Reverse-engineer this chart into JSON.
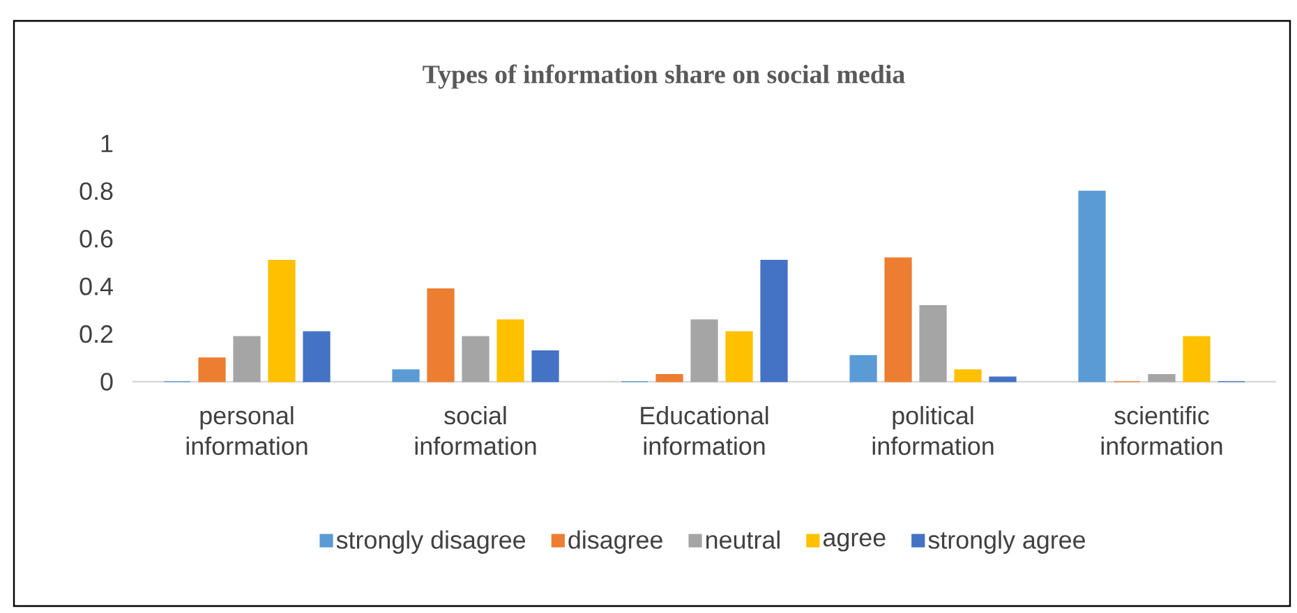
{
  "chart_data": {
    "type": "bar",
    "title": "Types of information share on social media",
    "categories": [
      "personal information",
      "social information",
      "Educational information",
      "political information",
      "scientific information"
    ],
    "series": [
      {
        "name": "strongly disagree",
        "color": "#5b9bd5",
        "values": [
          0,
          0.05,
          0,
          0.11,
          0.8
        ]
      },
      {
        "name": "disagree",
        "color": "#ed7d31",
        "values": [
          0.1,
          0.39,
          0.03,
          0.52,
          0
        ]
      },
      {
        "name": "neutral",
        "color": "#a5a5a5",
        "values": [
          0.19,
          0.19,
          0.26,
          0.32,
          0.03
        ]
      },
      {
        "name": "agree",
        "color": "#ffc000",
        "values": [
          0.51,
          0.26,
          0.21,
          0.05,
          0.19
        ]
      },
      {
        "name": "strongly agree",
        "color": "#4472c4",
        "values": [
          0.21,
          0.13,
          0.51,
          0.02,
          0
        ]
      }
    ],
    "ylim": [
      0,
      1
    ],
    "yticks": [
      0,
      0.2,
      0.4,
      0.6,
      0.8,
      1
    ],
    "grid": false,
    "legend": "bottom"
  }
}
